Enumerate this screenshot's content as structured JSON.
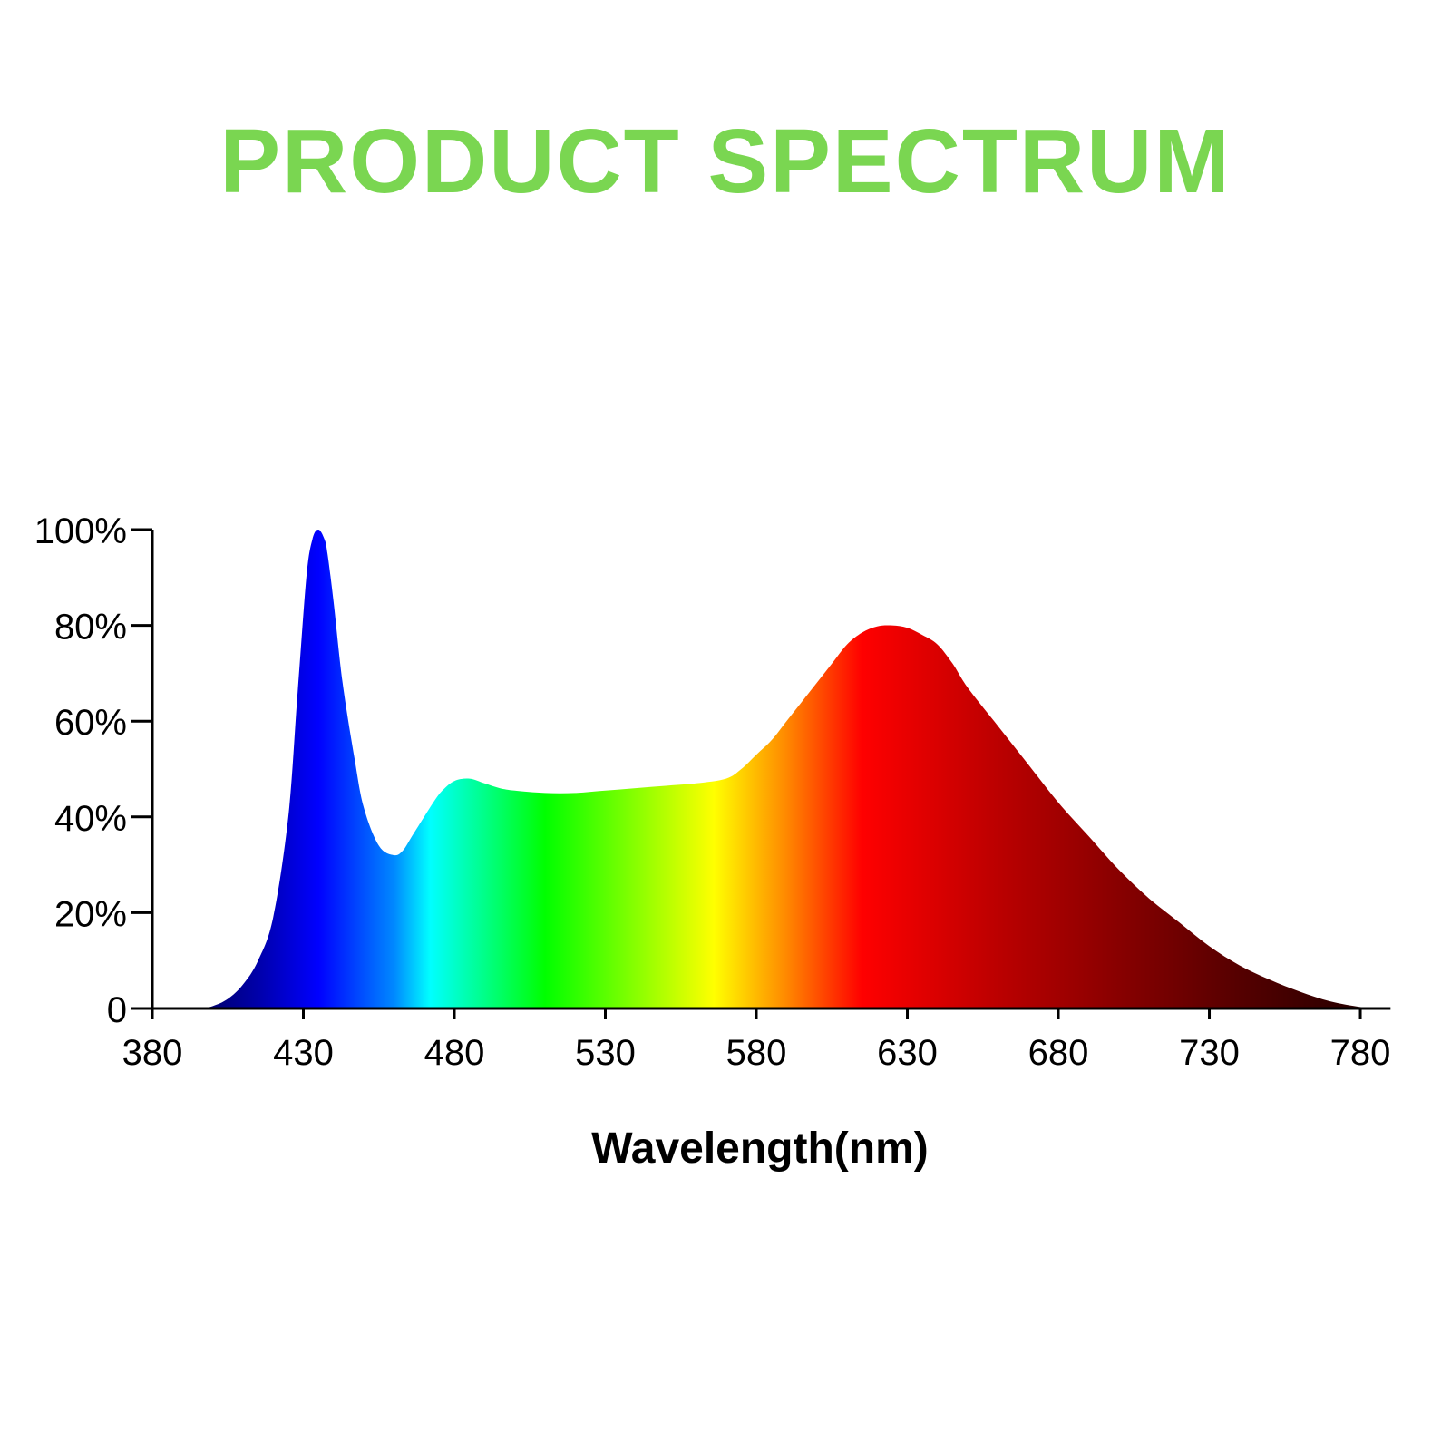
{
  "chart_data": {
    "type": "area",
    "title": "PRODUCT SPECTRUM",
    "xlabel": "Wavelength(nm)",
    "ylabel": "",
    "xlim": [
      380,
      790
    ],
    "ylim": [
      0,
      100
    ],
    "x_ticks": [
      380,
      430,
      480,
      530,
      580,
      630,
      680,
      730,
      780
    ],
    "y_ticks": [
      0,
      20,
      40,
      60,
      80,
      100
    ],
    "y_tick_labels": [
      "0",
      "20%",
      "40%",
      "60%",
      "80%",
      "100%"
    ],
    "grid": false,
    "legend": "none",
    "series": [
      {
        "x": [
          396,
          400,
          405,
          410,
          415,
          420,
          425,
          428,
          431,
          433,
          435,
          437,
          438,
          440,
          443,
          447,
          450,
          455,
          460,
          463,
          466,
          470,
          473,
          476,
          480,
          485,
          490,
          495,
          500,
          510,
          520,
          530,
          540,
          550,
          560,
          570,
          575,
          580,
          585,
          590,
          595,
          600,
          605,
          610,
          615,
          620,
          625,
          630,
          635,
          640,
          645,
          650,
          660,
          670,
          680,
          690,
          700,
          710,
          720,
          730,
          740,
          750,
          760,
          770,
          780,
          785
        ],
        "values": [
          0,
          0.5,
          2,
          5,
          10,
          19,
          40,
          65,
          90,
          98,
          100,
          98,
          95,
          85,
          68,
          52,
          42,
          34,
          32,
          33,
          36,
          40,
          43,
          45.5,
          47.5,
          48,
          47,
          46,
          45.5,
          45,
          45,
          45.5,
          46,
          46.5,
          47,
          48,
          50,
          53,
          56,
          60,
          64,
          68,
          72,
          76,
          78.5,
          79.8,
          80,
          79.5,
          78,
          76,
          72,
          67,
          59,
          51,
          43,
          36,
          29,
          23,
          18,
          13,
          9,
          6,
          3.5,
          1.5,
          0.3,
          0
        ]
      }
    ],
    "spectrum_colors": [
      {
        "nm": 396,
        "color": "#000066"
      },
      {
        "nm": 415,
        "color": "#0000aa"
      },
      {
        "nm": 435,
        "color": "#0000ff"
      },
      {
        "nm": 460,
        "color": "#0088ff"
      },
      {
        "nm": 472,
        "color": "#00ffff"
      },
      {
        "nm": 490,
        "color": "#00ff88"
      },
      {
        "nm": 510,
        "color": "#00ff00"
      },
      {
        "nm": 540,
        "color": "#88ff00"
      },
      {
        "nm": 566,
        "color": "#ffff00"
      },
      {
        "nm": 590,
        "color": "#ff8800"
      },
      {
        "nm": 615,
        "color": "#ff0000"
      },
      {
        "nm": 660,
        "color": "#bb0000"
      },
      {
        "nm": 700,
        "color": "#880000"
      },
      {
        "nm": 740,
        "color": "#550000"
      },
      {
        "nm": 785,
        "color": "#220000"
      }
    ],
    "title_color": "#7ad651"
  }
}
